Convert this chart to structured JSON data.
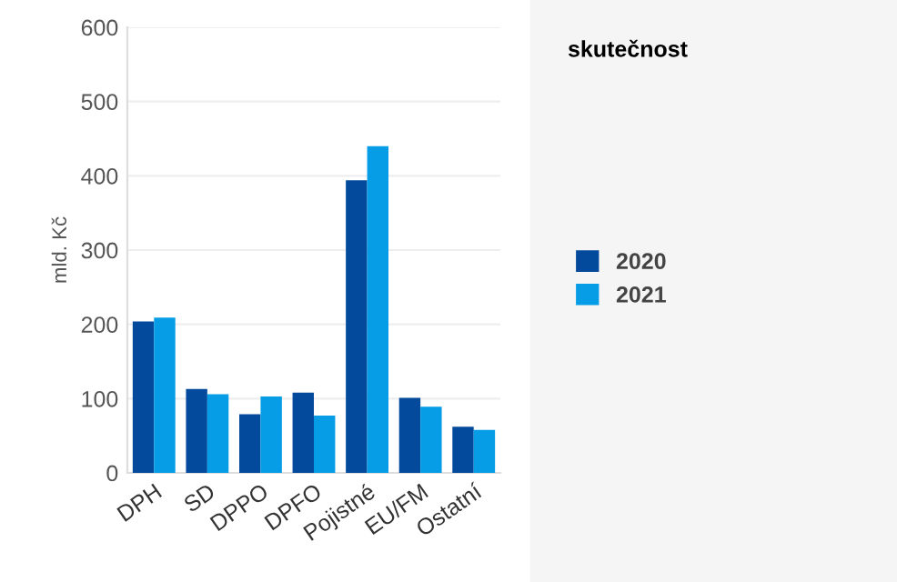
{
  "chart_data": {
    "type": "bar",
    "ylabel": "mld. Kč",
    "legend_title": "skutečnost",
    "categories": [
      "DPH",
      "SD",
      "DPPO",
      "DPFO",
      "Pojistné",
      "EU/FM",
      "Ostatní"
    ],
    "series": [
      {
        "name": "2020",
        "color": "#034a9c",
        "values": [
          204,
          113,
          79,
          108,
          394,
          101,
          62
        ]
      },
      {
        "name": "2021",
        "color": "#069de6",
        "values": [
          209,
          106,
          103,
          77,
          440,
          89,
          58
        ]
      }
    ],
    "ylim": [
      0,
      600
    ],
    "yticks": [
      0,
      100,
      200,
      300,
      400,
      500,
      600
    ],
    "grid": "y",
    "legend": "right"
  }
}
